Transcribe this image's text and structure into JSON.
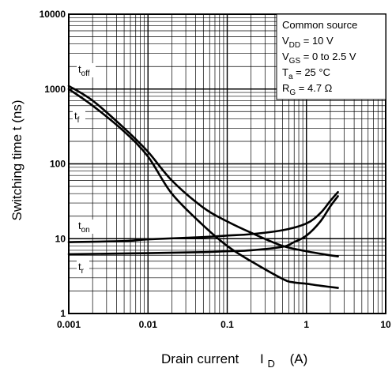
{
  "chart_data": {
    "type": "line",
    "x_scale": "log",
    "y_scale": "log",
    "xlim": [
      0.001,
      10
    ],
    "ylim": [
      1,
      10000
    ],
    "grid": true,
    "xlabel": "Drain current",
    "xlabel_symbol": "I",
    "xlabel_sub": "D",
    "xlabel_unit": "(A)",
    "ylabel": "Switching time   t   (ns)",
    "x_ticks": [
      "0.001",
      "0.01",
      "0.1",
      "1",
      "10"
    ],
    "y_ticks": [
      "1",
      "10",
      "100",
      "1000",
      "10000"
    ],
    "series": [
      {
        "name": "toff",
        "label_main": "t",
        "label_sub": "off",
        "x": [
          0.001,
          0.002,
          0.005,
          0.01,
          0.02,
          0.05,
          0.1,
          0.2,
          0.5,
          1,
          1.5,
          2,
          2.5
        ],
        "y": [
          1100,
          700,
          300,
          145,
          60,
          26,
          17,
          12,
          8,
          6.8,
          6.3,
          6.0,
          5.8
        ]
      },
      {
        "name": "tf",
        "label_main": "t",
        "label_sub": "f",
        "x": [
          0.001,
          0.002,
          0.005,
          0.01,
          0.02,
          0.05,
          0.1,
          0.2,
          0.5,
          0.7,
          1,
          1.5,
          2.5
        ],
        "y": [
          1000,
          600,
          270,
          125,
          40,
          15,
          8,
          5,
          2.9,
          2.6,
          2.5,
          2.35,
          2.2
        ]
      },
      {
        "name": "ton",
        "label_main": "t",
        "label_sub": "on",
        "x": [
          0.001,
          0.005,
          0.01,
          0.05,
          0.1,
          0.2,
          0.5,
          1,
          1.5,
          2,
          2.5
        ],
        "y": [
          9.0,
          9.3,
          9.8,
          10.5,
          11,
          11.5,
          13,
          16,
          22,
          32,
          42
        ]
      },
      {
        "name": "tr",
        "label_main": "t",
        "label_sub": "r",
        "x": [
          0.001,
          0.01,
          0.05,
          0.1,
          0.2,
          0.5,
          0.7,
          1,
          1.5,
          2,
          2.5
        ],
        "y": [
          6.2,
          6.4,
          6.6,
          6.8,
          7.0,
          7.8,
          9,
          11,
          17,
          27,
          37
        ]
      }
    ],
    "annotations": {
      "conditions": [
        {
          "main": "Common source",
          "sub": "",
          "rest": ""
        },
        {
          "main": "V",
          "sub": "DD",
          "rest": " = 10 V"
        },
        {
          "main": "V",
          "sub": "GS",
          "rest": " = 0 to 2.5 V"
        },
        {
          "main": "T",
          "sub": "a",
          "rest": " = 25 °C"
        },
        {
          "main": "R",
          "sub": "G",
          "rest": " = 4.7 Ω"
        }
      ]
    }
  }
}
